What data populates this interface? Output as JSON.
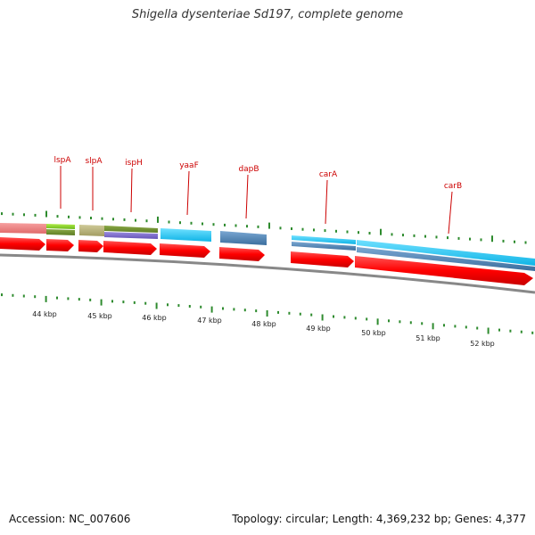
{
  "title": "Shigella dysenteriae Sd197, complete genome",
  "footer": {
    "accession": "Accession: NC_007606",
    "summary": "Topology: circular; Length: 4,369,232 bp; Genes: 4,377"
  },
  "gene_labels": [
    "lspA",
    "slpA",
    "ispH",
    "yaaF",
    "dapB",
    "carA",
    "carB"
  ],
  "scale_labels": [
    "44 kbp",
    "45 kbp",
    "46 kbp",
    "47 kbp",
    "48 kbp",
    "49 kbp",
    "50 kbp",
    "51 kbp",
    "52 kbp"
  ],
  "colors": {
    "forward_arrow": "#ff0000",
    "backbone": "#888888",
    "tick": "#2e8b2e",
    "label": "#cc0000",
    "feature_pink": "#f08080",
    "feature_green": "#7ccd1e",
    "feature_olive": "#b8b27a",
    "feature_purple": "#7b68c8",
    "feature_cyan": "#1ec8f0",
    "feature_steel": "#4a7fb0"
  }
}
